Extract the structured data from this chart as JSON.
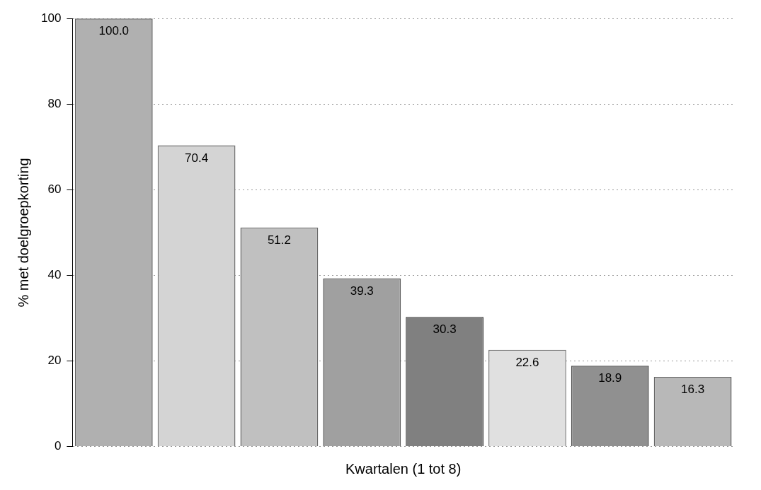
{
  "chart_data": {
    "type": "bar",
    "xlabel": "Kwartalen (1 tot 8)",
    "ylabel": "% met doelgroepkorting",
    "categories": [
      null,
      null,
      null,
      null,
      null,
      null,
      null,
      null
    ],
    "values": [
      100.0,
      70.4,
      51.2,
      39.3,
      30.3,
      22.6,
      18.9,
      16.3
    ],
    "value_labels": [
      "100.0",
      "70.4",
      "51.2",
      "39.3",
      "30.3",
      "22.6",
      "18.9",
      "16.3"
    ],
    "colors": [
      "#b0b0b0",
      "#d4d4d4",
      "#c0c0c0",
      "#a0a0a0",
      "#808080",
      "#e0e0e0",
      "#909090",
      "#b8b8b8"
    ],
    "ylim": [
      0,
      100
    ],
    "yticks": [
      0,
      20,
      40,
      60,
      80,
      100
    ],
    "grid": "y",
    "legend": false
  }
}
